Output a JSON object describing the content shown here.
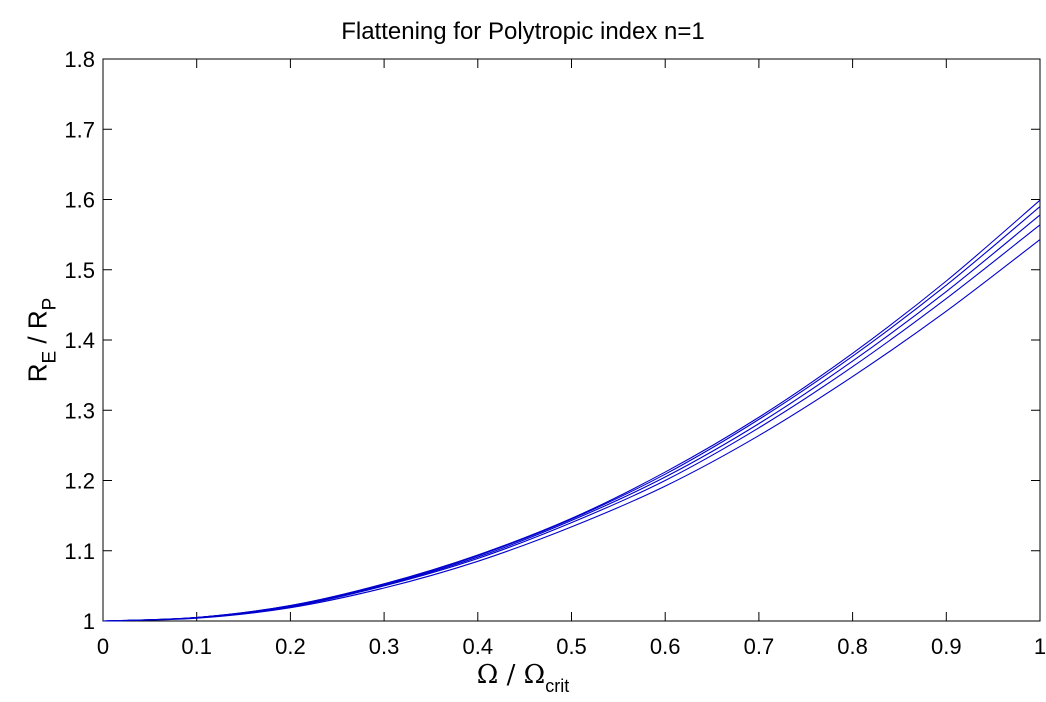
{
  "chart_data": {
    "type": "line",
    "title": "Flattening for Polytropic index n=1",
    "xlabel": {
      "main": "Ω / Ω",
      "sub": "crit"
    },
    "ylabel": {
      "main_e": "R",
      "sub_e": "E",
      "sep": " / ",
      "main_p": "R",
      "sub_p": "P"
    },
    "xlim": [
      0,
      1
    ],
    "ylim": [
      1,
      1.8
    ],
    "x_ticks": [
      "0",
      "0.1",
      "0.2",
      "0.3",
      "0.4",
      "0.5",
      "0.6",
      "0.7",
      "0.8",
      "0.9",
      "1"
    ],
    "y_ticks": [
      "1",
      "1.1",
      "1.2",
      "1.3",
      "1.4",
      "1.5",
      "1.6",
      "1.7",
      "1.8"
    ],
    "grid": false,
    "line_color": "#0000cc",
    "x": [
      0,
      0.1,
      0.2,
      0.3,
      0.4,
      0.5,
      0.6,
      0.7,
      0.8,
      0.9,
      1.0
    ],
    "series": [
      {
        "values": [
          1.0,
          1.005,
          1.022,
          1.053,
          1.094,
          1.146,
          1.212,
          1.29,
          1.381,
          1.484,
          1.599
        ]
      },
      {
        "values": [
          1.0,
          1.005,
          1.022,
          1.052,
          1.093,
          1.145,
          1.209,
          1.287,
          1.377,
          1.478,
          1.59
        ]
      },
      {
        "values": [
          1.0,
          1.005,
          1.021,
          1.051,
          1.091,
          1.143,
          1.205,
          1.281,
          1.37,
          1.469,
          1.578
        ]
      },
      {
        "values": [
          1.0,
          1.005,
          1.02,
          1.05,
          1.089,
          1.14,
          1.2,
          1.275,
          1.362,
          1.459,
          1.564
        ]
      },
      {
        "values": [
          1.0,
          1.004,
          1.019,
          1.047,
          1.085,
          1.134,
          1.192,
          1.264,
          1.348,
          1.441,
          1.543
        ]
      }
    ]
  }
}
